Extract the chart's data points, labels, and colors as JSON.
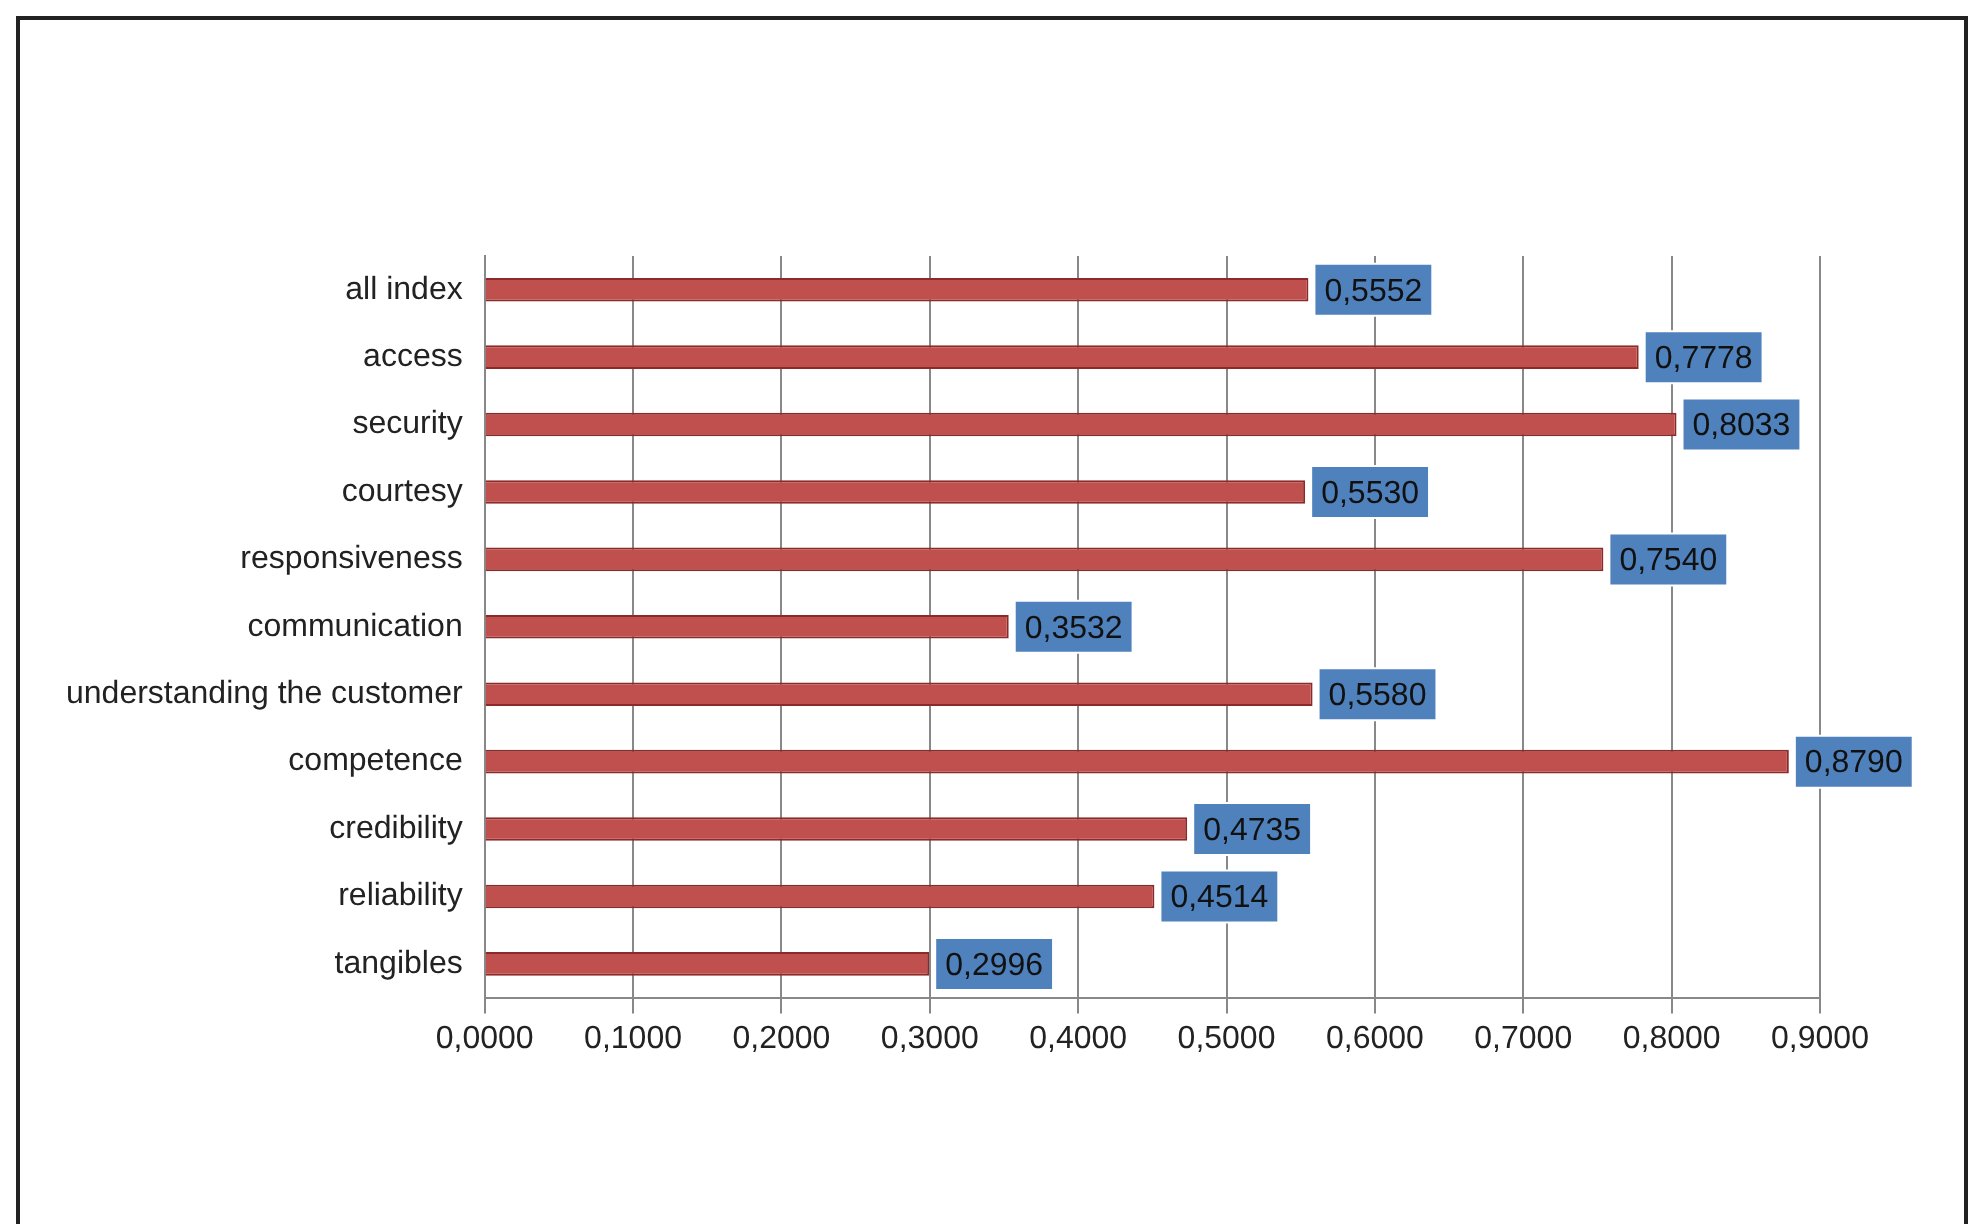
{
  "chart_data": {
    "type": "bar",
    "orientation": "horizontal",
    "categories": [
      "all index",
      "access",
      "security",
      "courtesy",
      "responsiveness",
      "communication",
      "understanding the customer",
      "competence",
      "credibility",
      "reliability",
      "tangibles"
    ],
    "values": [
      0.5552,
      0.7778,
      0.8033,
      0.553,
      0.754,
      0.3532,
      0.558,
      0.879,
      0.4735,
      0.4514,
      0.2996
    ],
    "value_labels": [
      "0,5552",
      "0,7778",
      "0,8033",
      "0,5530",
      "0,7540",
      "0,3532",
      "0,5580",
      "0,8790",
      "0,4735",
      "0,4514",
      "0,2996"
    ],
    "color": "#c0504d",
    "xlim": [
      0,
      0.9
    ],
    "xticks": [
      {
        "value": 0,
        "label": "0,0000"
      },
      {
        "value": 0.1,
        "label": "0,1000"
      },
      {
        "value": 0.2,
        "label": "0,2000"
      },
      {
        "value": 0.3,
        "label": "0,3000"
      },
      {
        "value": 0.4,
        "label": "0,4000"
      },
      {
        "value": 0.5,
        "label": "0,5000"
      },
      {
        "value": 0.6,
        "label": "0,6000"
      },
      {
        "value": 0.7,
        "label": "0,7000"
      },
      {
        "value": 0.8,
        "label": "0,8000"
      },
      {
        "value": 0.9,
        "label": "0,9000"
      }
    ],
    "grid": "x",
    "legend": false
  }
}
